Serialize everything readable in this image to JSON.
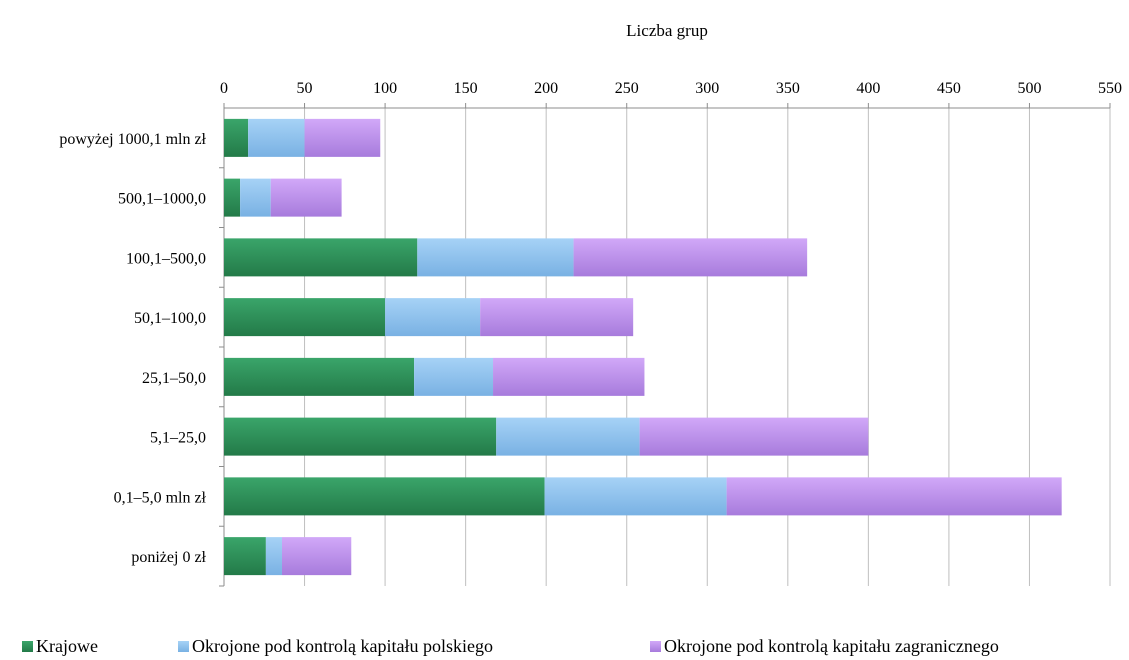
{
  "chart_data": {
    "type": "bar",
    "orientation": "horizontal",
    "stacked": true,
    "title": "Liczba grup",
    "xlim": [
      0,
      550
    ],
    "x_ticks": [
      0,
      50,
      100,
      150,
      200,
      250,
      300,
      350,
      400,
      450,
      500,
      550
    ],
    "axis_position": "top",
    "grid": true,
    "legend_placement": "bottom",
    "categories": [
      "powyżej 1000,1 mln zł",
      "500,1–1000,0",
      "100,1–500,0",
      "50,1–100,0",
      "25,1–50,0",
      "5,1–25,0",
      "0,1–5,0 mln zł",
      "poniżej 0 zł"
    ],
    "series": [
      {
        "name": "Krajowe",
        "color": "#2e8b57",
        "values": [
          15,
          10,
          120,
          100,
          118,
          169,
          199,
          26
        ]
      },
      {
        "name": "Okrojone pod kontrolą kapitału polskiego",
        "color": "#8fc3ee",
        "values": [
          35,
          19,
          97,
          59,
          49,
          89,
          113,
          10
        ]
      },
      {
        "name": "Okrojone pod kontrolą kapitału zagranicznego",
        "color": "#c08ff0",
        "values": [
          47,
          44,
          145,
          95,
          94,
          142,
          208,
          43
        ]
      }
    ]
  }
}
